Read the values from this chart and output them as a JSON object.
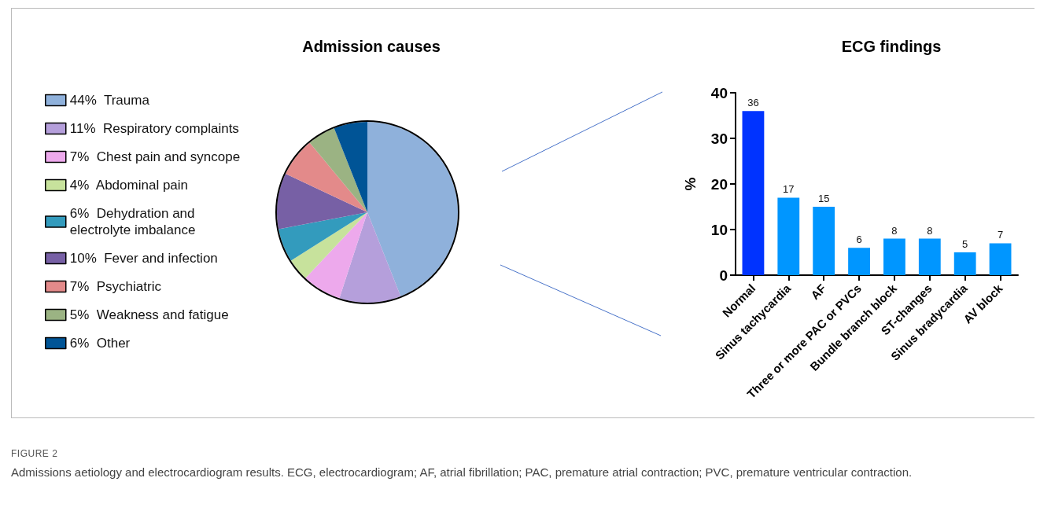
{
  "chart_data": [
    {
      "type": "pie",
      "title": "Admission causes",
      "categories": [
        "44%  Trauma",
        "11%  Respiratory complaints",
        "7%  Chest pain and syncope",
        "4%  Abdominal pain",
        "6%  Dehydration and electrolyte imbalance",
        "10%  Fever and infection",
        "7%  Psychiatric",
        "5%  Weakness and fatigue",
        "6%  Other"
      ],
      "values": [
        44,
        11,
        7,
        4,
        6,
        10,
        7,
        5,
        6
      ],
      "colors": [
        "#8fb1db",
        "#b59fdb",
        "#eda9ec",
        "#c7e29c",
        "#339bbd",
        "#7760a5",
        "#e38a8a",
        "#9bb383",
        "#005496"
      ],
      "legend": "left",
      "annotations": [
        "FIGURE 2",
        "Admissions aetiology and electrocardiogram results. ECG, electrocardiogram; AF, atrial fibrillation; PAC, premature atrial contraction; PVC, premature ventricular contraction."
      ]
    },
    {
      "type": "bar",
      "title": "ECG findings",
      "ylabel": "%",
      "categories": [
        "Normal",
        "Sinus tachycardia",
        "AF",
        "Three or more PAC or PVCs",
        "Bundle branch block",
        "ST-changes",
        "Sinus bradycardia",
        "AV block"
      ],
      "values": [
        36,
        17,
        15,
        6,
        8,
        8,
        5,
        7
      ],
      "colors": [
        "#0033ff",
        "#0096ff",
        "#0096ff",
        "#0096ff",
        "#0096ff",
        "#0096ff",
        "#0096ff",
        "#0096ff"
      ],
      "ylim": [
        0,
        40
      ],
      "yticks": [
        0,
        10,
        20,
        30,
        40
      ],
      "grid": false,
      "legend": false,
      "data_labels": true
    }
  ]
}
